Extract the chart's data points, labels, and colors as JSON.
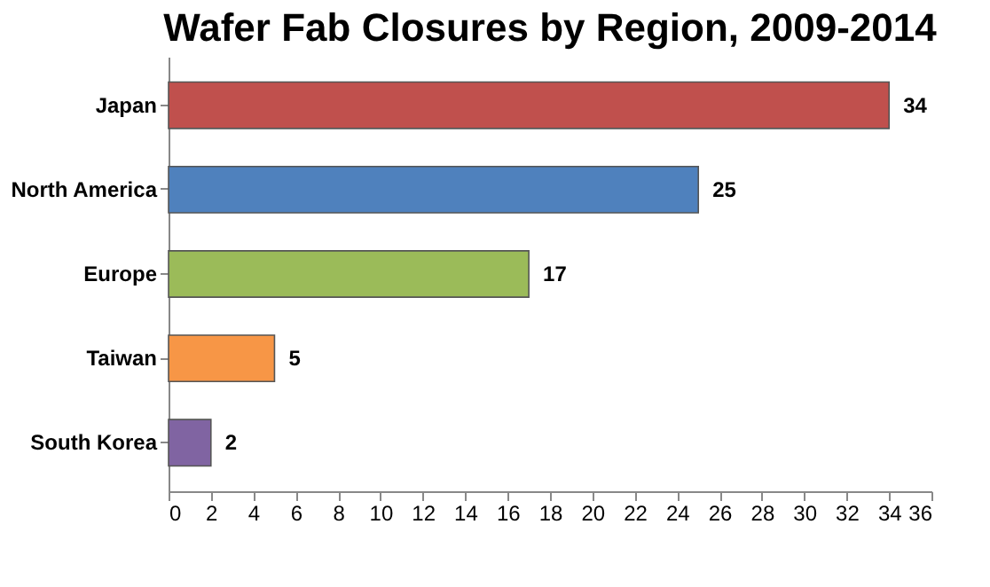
{
  "chart_data": {
    "type": "bar",
    "orientation": "horizontal",
    "title": "Wafer Fab Closures by Region, 2009-2014",
    "categories": [
      "Japan",
      "North America",
      "Europe",
      "Taiwan",
      "South Korea"
    ],
    "values": [
      34,
      25,
      17,
      5,
      2
    ],
    "colors": [
      "#c0504d",
      "#4f81bd",
      "#9bbb59",
      "#f79646",
      "#8064a2"
    ],
    "xlim": [
      0,
      36
    ],
    "xticks": [
      0,
      2,
      4,
      6,
      8,
      10,
      12,
      14,
      16,
      18,
      20,
      22,
      24,
      26,
      28,
      30,
      32,
      34,
      36
    ],
    "data_labels": true,
    "grid": false
  }
}
